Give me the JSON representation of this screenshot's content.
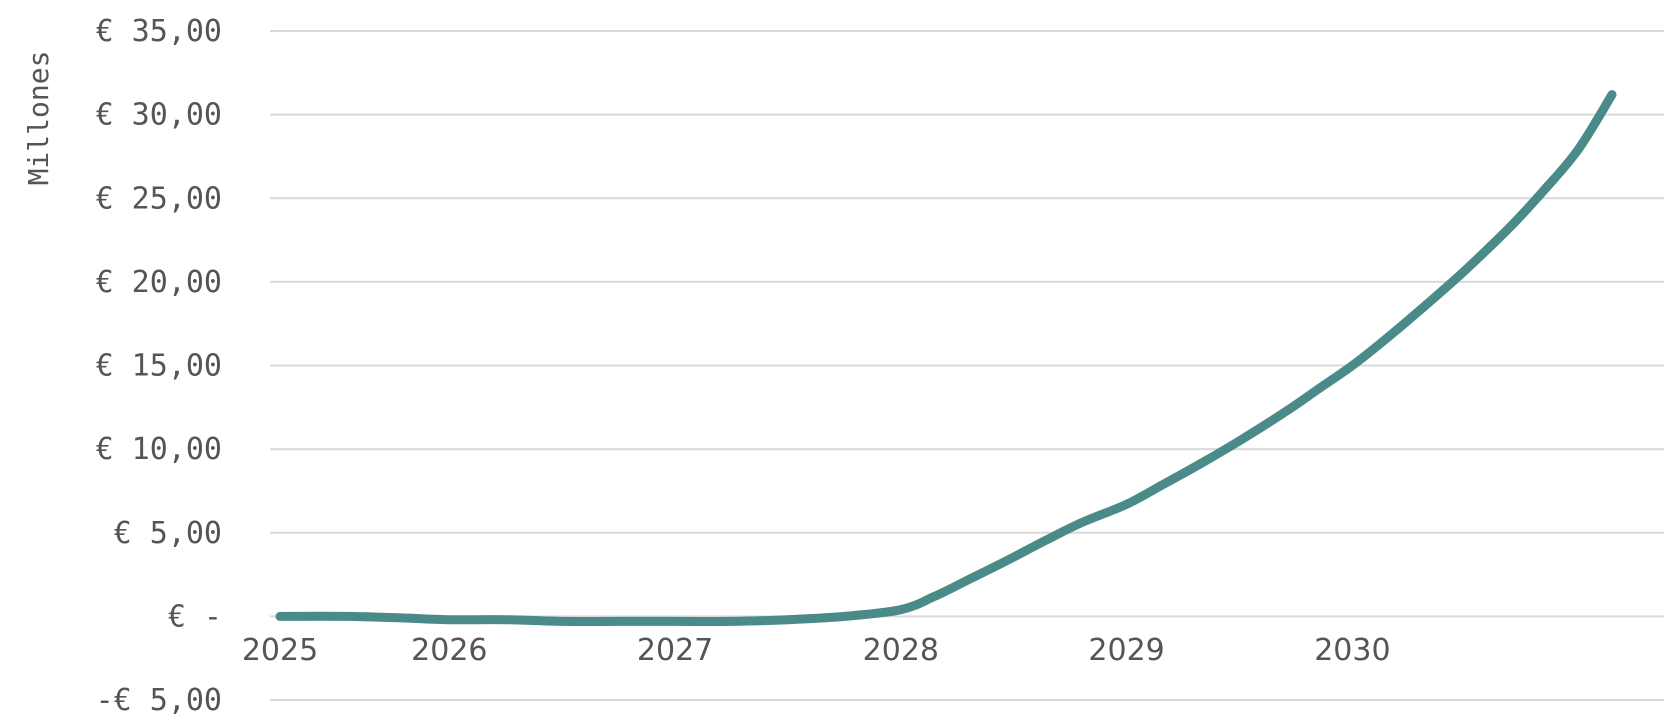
{
  "chart_data": {
    "type": "line",
    "ylabel": "Millones",
    "ylim": [
      -5,
      35
    ],
    "y_ticks": [
      {
        "value": 35,
        "label": "€ 35,00"
      },
      {
        "value": 30,
        "label": "€ 30,00"
      },
      {
        "value": 25,
        "label": "€ 25,00"
      },
      {
        "value": 20,
        "label": "€ 20,00"
      },
      {
        "value": 15,
        "label": "€ 15,00"
      },
      {
        "value": 10,
        "label": "€ 10,00"
      },
      {
        "value": 5,
        "label": "€ 5,00"
      },
      {
        "value": 0,
        "label": "€ -"
      },
      {
        "value": -5,
        "label": "-€ 5,00"
      }
    ],
    "x_ticks": [
      {
        "value": 2025.0,
        "label": "2025"
      },
      {
        "value": 2025.75,
        "label": "2026"
      },
      {
        "value": 2026.75,
        "label": "2027"
      },
      {
        "value": 2027.75,
        "label": "2028"
      },
      {
        "value": 2028.75,
        "label": "2029"
      },
      {
        "value": 2029.75,
        "label": "2030"
      }
    ],
    "xlim": [
      2025.0,
      2030.9
    ],
    "grid": true,
    "legend": "none",
    "series": [
      {
        "color": "#4a8a89",
        "points": [
          [
            2025.0,
            0.0
          ],
          [
            2025.3,
            0.0
          ],
          [
            2025.55,
            -0.1
          ],
          [
            2025.75,
            -0.2
          ],
          [
            2026.0,
            -0.2
          ],
          [
            2026.25,
            -0.3
          ],
          [
            2026.5,
            -0.3
          ],
          [
            2026.75,
            -0.3
          ],
          [
            2027.0,
            -0.3
          ],
          [
            2027.25,
            -0.2
          ],
          [
            2027.5,
            0.0
          ],
          [
            2027.75,
            0.4
          ],
          [
            2027.9,
            1.2
          ],
          [
            2028.05,
            2.2
          ],
          [
            2028.2,
            3.2
          ],
          [
            2028.4,
            4.6
          ],
          [
            2028.55,
            5.6
          ],
          [
            2028.75,
            6.7
          ],
          [
            2028.9,
            7.8
          ],
          [
            2029.1,
            9.3
          ],
          [
            2029.25,
            10.5
          ],
          [
            2029.45,
            12.2
          ],
          [
            2029.6,
            13.6
          ],
          [
            2029.75,
            15.0
          ],
          [
            2029.9,
            16.6
          ],
          [
            2030.1,
            18.9
          ],
          [
            2030.25,
            20.7
          ],
          [
            2030.45,
            23.3
          ],
          [
            2030.6,
            25.5
          ],
          [
            2030.75,
            27.9
          ],
          [
            2030.9,
            31.2
          ]
        ]
      }
    ]
  }
}
